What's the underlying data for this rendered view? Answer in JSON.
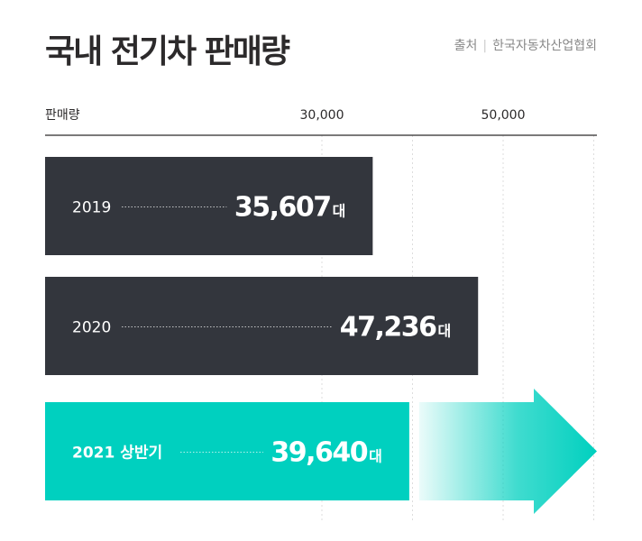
{
  "header": {
    "title": "국내 전기차 판매량",
    "source_label": "출처",
    "source_name": "한국자동차산업협회"
  },
  "chart_data": {
    "type": "bar",
    "orientation": "horizontal",
    "title": "국내 전기차 판매량",
    "ylabel": "판매량",
    "ticks": [
      {
        "value": 30000,
        "label": "30,000"
      },
      {
        "value": 50000,
        "label": "50,000"
      }
    ],
    "gridlines": [
      30000,
      40000,
      50000,
      60000
    ],
    "categories": [
      "2019",
      "2020",
      "2021 상반기"
    ],
    "values": [
      35607,
      47236,
      39640
    ],
    "value_labels": [
      "35,607",
      "47,236",
      "39,640"
    ],
    "unit": "대",
    "colors": {
      "bar": "#33363d",
      "highlight": "#00d0bf",
      "axis": "#2c2a2b",
      "grid": "#dddddd",
      "text_on_bar": "#ffffff"
    }
  }
}
